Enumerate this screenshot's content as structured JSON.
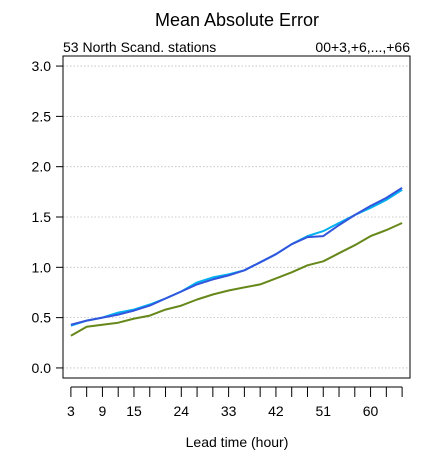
{
  "chart_data": {
    "type": "line",
    "title": "Mean Absolute Error",
    "subtitle_left": "53 North Scand. stations",
    "subtitle_right": "00+3,+6,...,+66",
    "xlabel": "Lead time (hour)",
    "ylabel": "",
    "x": [
      3,
      6,
      9,
      12,
      15,
      18,
      21,
      24,
      27,
      30,
      33,
      36,
      39,
      42,
      45,
      48,
      51,
      54,
      57,
      60,
      63,
      66
    ],
    "xlim": [
      1.5,
      67.5
    ],
    "ylim": [
      -0.1,
      3.1
    ],
    "x_tick_labels": [
      "3",
      "9",
      "15",
      "24",
      "33",
      "42",
      "51",
      "60"
    ],
    "x_tick_label_values": [
      3,
      9,
      15,
      24,
      33,
      42,
      51,
      60
    ],
    "y_ticks": [
      0.0,
      0.5,
      1.0,
      1.5,
      2.0,
      2.5,
      3.0
    ],
    "y_tick_labels": [
      "0.0",
      "0.5",
      "1.0",
      "1.5",
      "2.0",
      "2.5",
      "3.0"
    ],
    "grid": true,
    "series": [
      {
        "color": "#00b0f0",
        "values": [
          0.42,
          0.47,
          0.5,
          0.55,
          0.58,
          0.63,
          0.69,
          0.76,
          0.85,
          0.9,
          0.93,
          0.97,
          1.05,
          1.13,
          1.23,
          1.31,
          1.36,
          1.44,
          1.52,
          1.59,
          1.67,
          1.77
        ]
      },
      {
        "color": "#3355dd",
        "values": [
          0.43,
          0.47,
          0.5,
          0.53,
          0.57,
          0.62,
          0.69,
          0.76,
          0.83,
          0.88,
          0.92,
          0.97,
          1.05,
          1.13,
          1.23,
          1.3,
          1.31,
          1.42,
          1.52,
          1.61,
          1.69,
          1.79
        ]
      },
      {
        "color": "#66881a",
        "values": [
          0.32,
          0.41,
          0.43,
          0.45,
          0.49,
          0.52,
          0.58,
          0.62,
          0.68,
          0.73,
          0.77,
          0.8,
          0.83,
          0.89,
          0.95,
          1.02,
          1.06,
          1.14,
          1.22,
          1.31,
          1.37,
          1.44
        ]
      }
    ]
  }
}
